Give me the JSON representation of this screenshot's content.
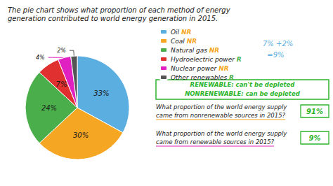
{
  "chart_data": {
    "type": "pie",
    "title": "The pie chart shows what proportion of each method of energy",
    "subtitle": "generation contributed to world energy generation in 2015.",
    "categories": [
      "Oil",
      "Coal",
      "Natural gas",
      "Hydroelectric power",
      "Nuclear power",
      "Other renewables"
    ],
    "values": [
      33,
      30,
      24,
      7,
      4,
      2
    ],
    "value_labels": [
      "33%",
      "30%",
      "24%",
      "7%",
      "4%",
      "2%"
    ],
    "data_labels": true,
    "colors": [
      "#5baee0",
      "#f5a623",
      "#4aaf4a",
      "#e03030",
      "#e020c0",
      "#555555"
    ],
    "legend": "right",
    "legend_tags": [
      {
        "text": "NR",
        "color": "#f5a623"
      },
      {
        "text": "NR",
        "color": "#f5a623"
      },
      {
        "text": "NR",
        "color": "#f5a623"
      },
      {
        "text": "R",
        "color": "#4aaf4a"
      },
      {
        "text": "NR",
        "color": "#f5a623"
      },
      {
        "text": "R",
        "color": "#4aaf4a"
      }
    ],
    "text_color": "#1a1a1a",
    "box_lines": [
      "RENEWABLE: can't be depleted",
      "NONRENEWABLE: can be depleted"
    ],
    "box_color": "#2db52d",
    "sum_note": [
      "7% +2%",
      "  =9%"
    ],
    "sum_color": "#5baee0",
    "questions": [
      {
        "lines": [
          "What proportion of the world energy supply",
          "came from nonrenewable sources in 2015?"
        ],
        "underline_color": "#f5a623",
        "answer": "91%"
      },
      {
        "lines": [
          "What proportion of the world energy supply",
          "came from renewable sources in 2015?"
        ],
        "underline_color": "#e020c0",
        "answer": "9%"
      }
    ],
    "answer_color": "#2db52d"
  }
}
